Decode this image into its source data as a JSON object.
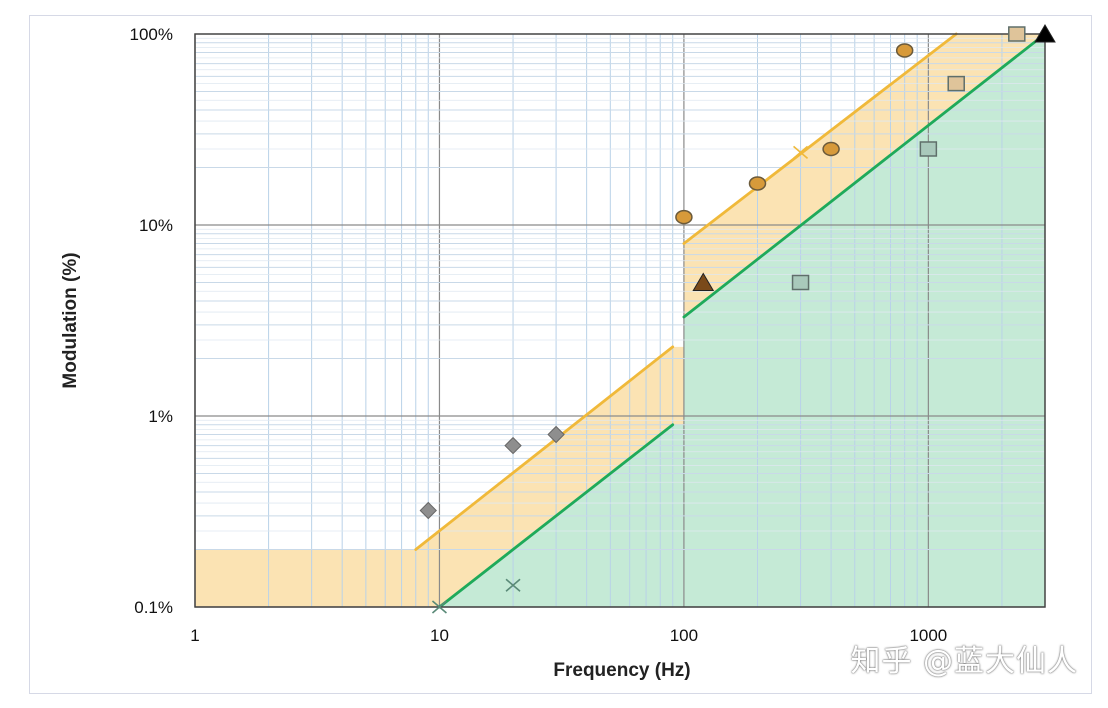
{
  "chart_data": {
    "type": "scatter",
    "xlabel": "Frequency (Hz)",
    "ylabel": "Modulation (%)",
    "x_scale": "log",
    "y_scale": "log",
    "xlim": [
      1,
      3000
    ],
    "ylim": [
      0.1,
      100
    ],
    "grid": true,
    "x_ticks": [
      {
        "value": 1,
        "label": "1"
      },
      {
        "value": 10,
        "label": "10"
      },
      {
        "value": 100,
        "label": "100"
      },
      {
        "value": 1000,
        "label": "1000"
      }
    ],
    "y_ticks": [
      {
        "value": 0.1,
        "label": "0.1%"
      },
      {
        "value": 1,
        "label": "1%"
      },
      {
        "value": 10,
        "label": "10%"
      },
      {
        "value": 100,
        "label": "100%"
      }
    ],
    "regions": [
      {
        "name": "",
        "color": "#fbe3b3",
        "polygon": [
          [
            1,
            0.1
          ],
          [
            1,
            0.2
          ],
          [
            8,
            0.2
          ],
          [
            90,
            2.3
          ],
          [
            100,
            2.3
          ],
          [
            100,
            8
          ],
          [
            1300,
            100
          ],
          [
            3000,
            100
          ],
          [
            3000,
            0.1
          ]
        ]
      },
      {
        "name": "",
        "color": "#c5ead6",
        "polygon": [
          [
            10,
            0.1
          ],
          [
            90,
            0.9
          ],
          [
            100,
            0.9
          ],
          [
            100,
            3.3
          ],
          [
            3000,
            100
          ],
          [
            3000,
            0.1
          ]
        ]
      }
    ],
    "lines": [
      {
        "name": "",
        "color": "#f0b93a",
        "segments": [
          [
            [
              8,
              0.2
            ],
            [
              90,
              2.3
            ]
          ],
          [
            [
              100,
              8
            ],
            [
              1300,
              100
            ]
          ]
        ]
      },
      {
        "name": "",
        "color": "#1faa5a",
        "segments": [
          [
            [
              10,
              0.1
            ],
            [
              90,
              0.9
            ]
          ],
          [
            [
              100,
              3.3
            ],
            [
              3000,
              100
            ]
          ]
        ]
      }
    ],
    "series": [
      {
        "name": "",
        "marker": "diamond",
        "color": "#8e8e8e",
        "points": [
          [
            9,
            0.32
          ],
          [
            20,
            0.7
          ],
          [
            30,
            0.8
          ]
        ]
      },
      {
        "name": "",
        "marker": "circle",
        "color": "#d79a3a",
        "points": [
          [
            100,
            11
          ],
          [
            200,
            16.5
          ],
          [
            400,
            25
          ],
          [
            800,
            82
          ]
        ]
      },
      {
        "name": "",
        "marker": "square",
        "color": "#dfc49a",
        "points": [
          [
            1300,
            55
          ],
          [
            2300,
            100
          ]
        ]
      },
      {
        "name": "",
        "marker": "square",
        "color": "#a9c9bb",
        "points": [
          [
            300,
            5
          ],
          [
            1000,
            25
          ]
        ]
      },
      {
        "name": "",
        "marker": "triangle",
        "color": "#7a4a1a",
        "points": [
          [
            120,
            5
          ]
        ]
      },
      {
        "name": "",
        "marker": "triangle",
        "color": "#000000",
        "points": [
          [
            3000,
            100
          ]
        ]
      },
      {
        "name": "",
        "marker": "x",
        "color": "#5a8a78",
        "points": [
          [
            20,
            0.13
          ],
          [
            10,
            0.1
          ]
        ]
      },
      {
        "name": "",
        "marker": "x",
        "color": "#f0b93a",
        "points": [
          [
            300,
            24
          ]
        ]
      }
    ]
  },
  "watermark": "知乎 @蓝大仙人"
}
